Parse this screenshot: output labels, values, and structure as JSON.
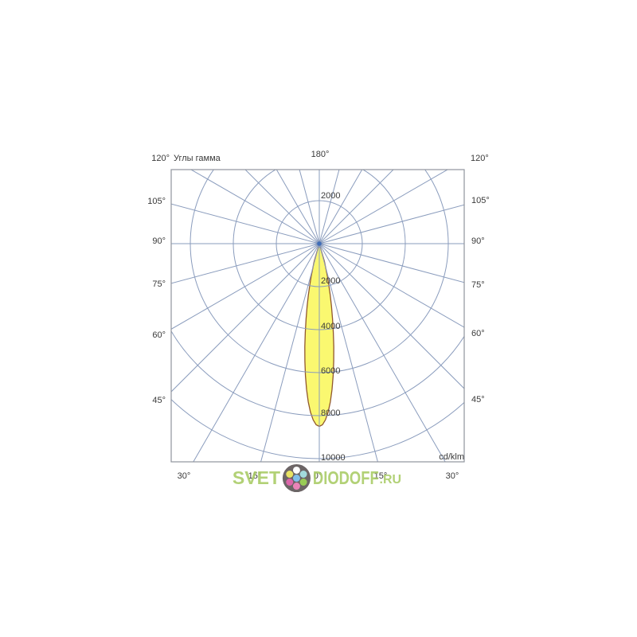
{
  "header": {
    "title": "Углы гамма"
  },
  "unit_label": "cd/klm",
  "watermark": {
    "text_left": "SVET",
    "text_right": "DIODOFF",
    "text_tld": ".RU",
    "color": "#a8cb64"
  },
  "colors": {
    "grid": "#8a9cbd",
    "border": "#90949c",
    "beam_fill": "#faf870",
    "beam_outline": "#90572e",
    "label_text": "#3a3a3a",
    "pole_marker": "#3f6db8"
  },
  "chart_data": {
    "type": "polar",
    "title": "Углы гамма",
    "unit": "cd/klm",
    "angle_grid_step_deg": 15,
    "radial_ticks": [
      2000,
      4000,
      6000,
      8000,
      10000
    ],
    "radial_tick_labels": [
      "2000",
      "4000",
      "6000",
      "8000",
      "10000"
    ],
    "upper_radial_tick_label": "2000",
    "radial_max": 10000,
    "angle_labels": {
      "top": [
        "120°",
        "180°",
        "120°"
      ],
      "left": [
        "105°",
        "90°",
        "75°",
        "60°",
        "45°"
      ],
      "right": [
        "105°",
        "90°",
        "75°",
        "60°",
        "45°"
      ],
      "bottom": [
        "30°",
        "15°",
        "0°",
        "15°",
        "30°"
      ]
    },
    "series": [
      {
        "name": "luminous-intensity-curve",
        "symmetric": true,
        "peak_cd_per_klm": 8500,
        "beam_direction_deg": 0,
        "gamma_deg": [
          0,
          1,
          2,
          3,
          4,
          5,
          6,
          7,
          8,
          9,
          10,
          11,
          12,
          13,
          14,
          15,
          16
        ],
        "cd_per_klm": [
          8500,
          8425,
          8203,
          7846,
          7372,
          6806,
          6177,
          5513,
          4838,
          4176,
          3546,
          2962,
          2433,
          1966,
          1563,
          1150,
          871
        ]
      }
    ]
  }
}
